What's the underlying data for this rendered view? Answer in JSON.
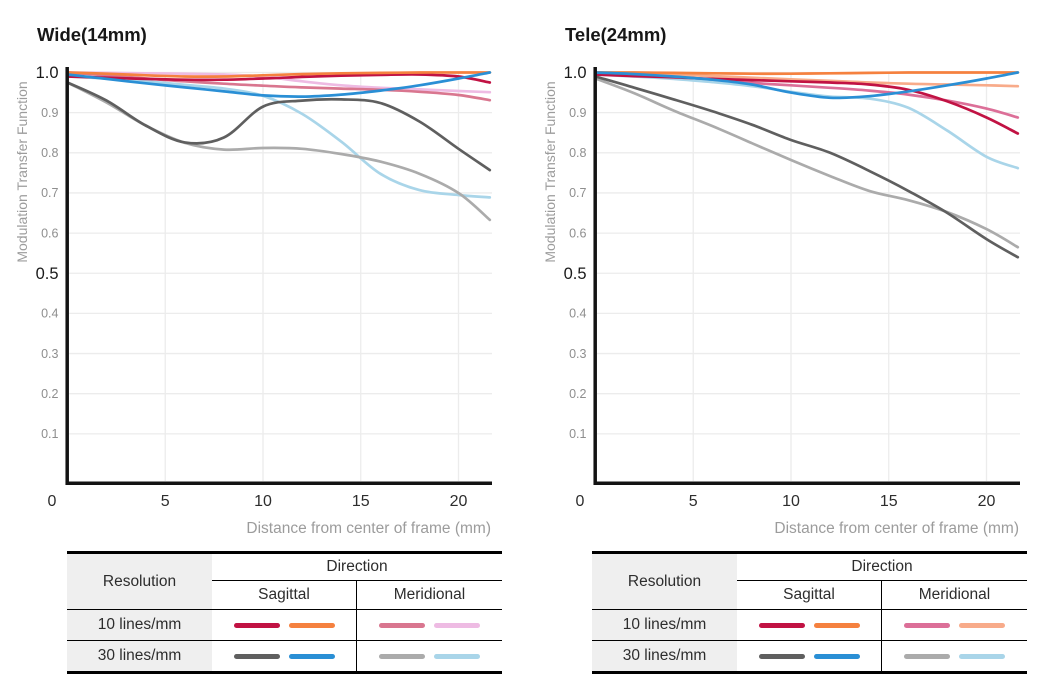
{
  "chart_data": [
    {
      "type": "line",
      "title": "Wide(14mm)",
      "xlabel": "Distance from center of frame (mm)",
      "ylabel": "Modulation Transfer Function",
      "xlim": [
        0,
        21.6
      ],
      "ylim": [
        0,
        1.0
      ],
      "x_ticks": [
        0,
        5,
        10,
        15,
        20
      ],
      "y_ticks": [
        "0.1",
        "0.2",
        "0.3",
        "0.4",
        "0.5",
        "0.6",
        "0.7",
        "0.8",
        "0.9",
        "1.0"
      ],
      "y_ticks_emphasized": [
        "0.5",
        "1.0"
      ],
      "grid": true,
      "x": [
        0,
        2,
        4,
        6,
        8,
        10,
        12,
        14,
        16,
        18,
        20,
        21.6
      ],
      "series": [
        {
          "name": "10 lines/mm Meridional (2)",
          "color": "#eebbe3",
          "values": [
            1.0,
            0.999,
            0.998,
            0.997,
            0.995,
            0.99,
            0.978,
            0.968,
            0.962,
            0.958,
            0.954,
            0.951
          ]
        },
        {
          "name": "10 lines/mm Meridional (1)",
          "color": "#d9768f",
          "values": [
            1.0,
            0.993,
            0.985,
            0.978,
            0.972,
            0.967,
            0.963,
            0.96,
            0.957,
            0.952,
            0.944,
            0.931
          ]
        },
        {
          "name": "30 lines/mm Meridional (2)",
          "color": "#a9d5e9",
          "values": [
            0.99,
            0.985,
            0.978,
            0.969,
            0.96,
            0.942,
            0.897,
            0.828,
            0.748,
            0.707,
            0.695,
            0.689
          ]
        },
        {
          "name": "30 lines/mm Meridional (1)",
          "color": "#ababab",
          "values": [
            0.975,
            0.925,
            0.868,
            0.825,
            0.808,
            0.812,
            0.81,
            0.797,
            0.778,
            0.748,
            0.7,
            0.633
          ]
        },
        {
          "name": "30 lines/mm Sagittal (1)",
          "color": "#5f5f5f",
          "values": [
            0.975,
            0.93,
            0.868,
            0.826,
            0.838,
            0.915,
            0.93,
            0.933,
            0.924,
            0.878,
            0.81,
            0.757
          ]
        },
        {
          "name": "10 lines/mm Sagittal (1)",
          "color": "#c11243",
          "values": [
            0.99,
            0.987,
            0.984,
            0.982,
            0.982,
            0.985,
            0.989,
            0.992,
            0.994,
            0.995,
            0.99,
            0.975
          ]
        },
        {
          "name": "10 lines/mm Sagittal (2)",
          "color": "#f5813f",
          "values": [
            1.0,
            0.997,
            0.993,
            0.99,
            0.99,
            0.993,
            0.996,
            0.998,
            0.999,
            1.0,
            1.0,
            1.0
          ]
        },
        {
          "name": "30 lines/mm Sagittal (2)",
          "color": "#2a8fd5",
          "values": [
            0.995,
            0.984,
            0.973,
            0.963,
            0.953,
            0.943,
            0.94,
            0.945,
            0.955,
            0.968,
            0.985,
            1.0
          ]
        }
      ]
    },
    {
      "type": "line",
      "title": "Tele(24mm)",
      "xlabel": "Distance from center of frame (mm)",
      "ylabel": "Modulation Transfer Function",
      "xlim": [
        0,
        21.6
      ],
      "ylim": [
        0,
        1.0
      ],
      "x_ticks": [
        0,
        5,
        10,
        15,
        20
      ],
      "y_ticks": [
        "0.1",
        "0.2",
        "0.3",
        "0.4",
        "0.5",
        "0.6",
        "0.7",
        "0.8",
        "0.9",
        "1.0"
      ],
      "y_ticks_emphasized": [
        "0.5",
        "1.0"
      ],
      "grid": true,
      "x": [
        0,
        2,
        4,
        6,
        8,
        10,
        12,
        14,
        16,
        18,
        20,
        21.6
      ],
      "series": [
        {
          "name": "10 lines/mm Meridional (2)",
          "color": "#f8ab8a",
          "values": [
            1.0,
            0.998,
            0.995,
            0.991,
            0.987,
            0.983,
            0.979,
            0.975,
            0.972,
            0.97,
            0.968,
            0.966
          ]
        },
        {
          "name": "10 lines/mm Meridional (1)",
          "color": "#dc6f98",
          "values": [
            1.0,
            0.995,
            0.988,
            0.981,
            0.974,
            0.968,
            0.962,
            0.955,
            0.945,
            0.93,
            0.91,
            0.888
          ]
        },
        {
          "name": "30 lines/mm Meridional (2)",
          "color": "#a9d5e9",
          "values": [
            0.995,
            0.99,
            0.984,
            0.976,
            0.966,
            0.952,
            0.94,
            0.935,
            0.912,
            0.855,
            0.79,
            0.762
          ]
        },
        {
          "name": "30 lines/mm Meridional (1)",
          "color": "#ababab",
          "values": [
            0.985,
            0.948,
            0.905,
            0.866,
            0.824,
            0.782,
            0.742,
            0.705,
            0.682,
            0.652,
            0.61,
            0.565
          ]
        },
        {
          "name": "30 lines/mm Sagittal (1)",
          "color": "#5f5f5f",
          "values": [
            0.99,
            0.962,
            0.933,
            0.903,
            0.87,
            0.832,
            0.8,
            0.755,
            0.705,
            0.65,
            0.585,
            0.54
          ]
        },
        {
          "name": "10 lines/mm Sagittal (1)",
          "color": "#c11243",
          "values": [
            0.995,
            0.991,
            0.988,
            0.984,
            0.981,
            0.978,
            0.975,
            0.97,
            0.957,
            0.928,
            0.888,
            0.848
          ]
        },
        {
          "name": "10 lines/mm Sagittal (2)",
          "color": "#f5813f",
          "values": [
            1.0,
            1.0,
            0.999,
            0.998,
            0.997,
            0.997,
            0.998,
            0.999,
            1.0,
            1.0,
            1.0,
            1.0
          ]
        },
        {
          "name": "30 lines/mm Sagittal (2)",
          "color": "#2a8fd5",
          "values": [
            1.0,
            0.996,
            0.99,
            0.982,
            0.97,
            0.95,
            0.937,
            0.941,
            0.953,
            0.968,
            0.985,
            1.0
          ]
        }
      ]
    }
  ],
  "legends": [
    {
      "resolution_header": "Resolution",
      "direction_header": "Direction",
      "sagittal_header": "Sagittal",
      "meridional_header": "Meridional",
      "rows": [
        {
          "label": "10 lines/mm",
          "colors": [
            "#c11243",
            "#f5813f",
            "#d9768f",
            "#eebbe3"
          ]
        },
        {
          "label": "30 lines/mm",
          "colors": [
            "#5f5f5f",
            "#2a8fd5",
            "#ababab",
            "#a9d5e9"
          ]
        }
      ]
    },
    {
      "resolution_header": "Resolution",
      "direction_header": "Direction",
      "sagittal_header": "Sagittal",
      "meridional_header": "Meridional",
      "rows": [
        {
          "label": "10 lines/mm",
          "colors": [
            "#c11243",
            "#f5813f",
            "#dc6f98",
            "#f8ab8a"
          ]
        },
        {
          "label": "30 lines/mm",
          "colors": [
            "#5f5f5f",
            "#2a8fd5",
            "#ababab",
            "#a9d5e9"
          ]
        }
      ]
    }
  ],
  "style": {
    "grid_color": "#ececec",
    "axis_color": "#131313",
    "tick_label_color": "#8e8e8e",
    "tick_label_emphasis_color": "#1a1a1a",
    "x_tick_label_color": "#2d2d2d",
    "axis_title_color": "#9c9c9c",
    "chart_title_color": "#171717"
  }
}
